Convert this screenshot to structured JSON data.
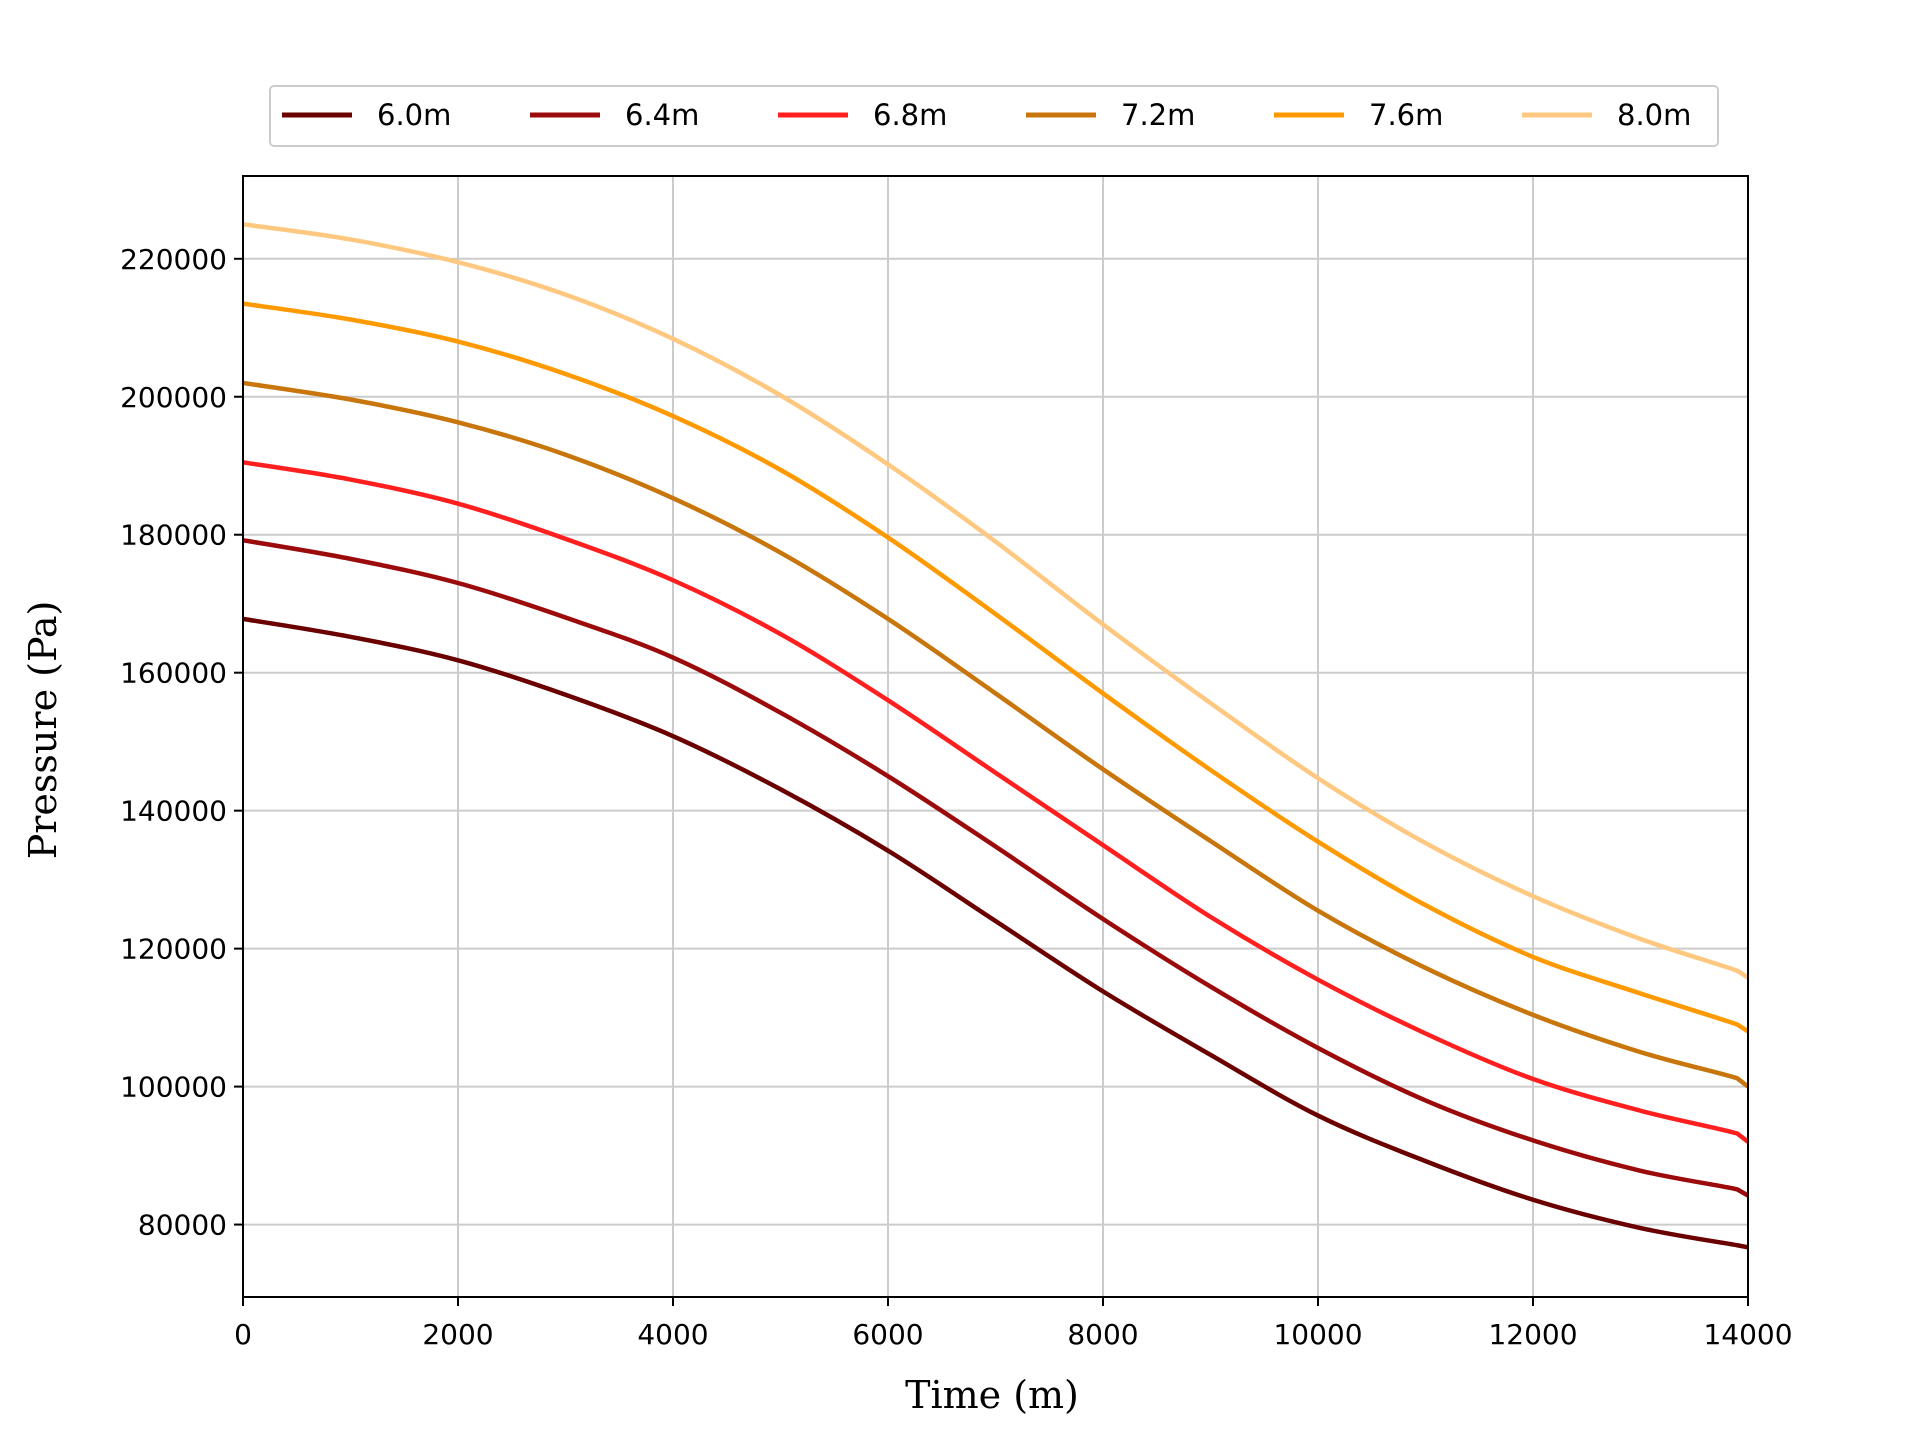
{
  "chart_data": {
    "type": "line",
    "xlabel": "Time (m)",
    "ylabel": "Pressure (Pa)",
    "xlim": [
      0,
      14000
    ],
    "ylim": [
      69500,
      232000
    ],
    "xticks": [
      0,
      2000,
      4000,
      6000,
      8000,
      10000,
      12000,
      14000
    ],
    "yticks": [
      80000,
      100000,
      120000,
      140000,
      160000,
      180000,
      200000,
      220000
    ],
    "grid": true,
    "legend_placement": "top-center",
    "x": [
      0,
      1000,
      2000,
      3000,
      4000,
      5000,
      6000,
      7000,
      8000,
      9000,
      10000,
      11000,
      12000,
      13000,
      13900,
      14000
    ],
    "series": [
      {
        "name": "6.0m",
        "color": "#6b0000",
        "values": [
          167800,
          165200,
          161800,
          156800,
          150800,
          143100,
          134200,
          124000,
          113800,
          104600,
          95800,
          89200,
          83600,
          79500,
          77000,
          76700
        ]
      },
      {
        "name": "6.4m",
        "color": "#9c0b0b",
        "values": [
          179200,
          176500,
          173000,
          168000,
          162200,
          154200,
          145000,
          134800,
          124300,
          114500,
          105600,
          98000,
          92200,
          87800,
          85100,
          84200
        ]
      },
      {
        "name": "6.8m",
        "color": "#ff1f1f",
        "values": [
          190500,
          188000,
          184500,
          179400,
          173400,
          165600,
          156000,
          145500,
          135000,
          124600,
          115500,
          107700,
          101100,
          96500,
          93200,
          92000
        ]
      },
      {
        "name": "7.2m",
        "color": "#c8760c",
        "values": [
          202000,
          199600,
          196300,
          191600,
          185300,
          177400,
          167800,
          157000,
          146000,
          135600,
          125500,
          117200,
          110400,
          105000,
          101200,
          100000
        ]
      },
      {
        "name": "7.6m",
        "color": "#ff9900",
        "values": [
          213500,
          211200,
          208000,
          203300,
          197200,
          189400,
          179600,
          168500,
          157000,
          145900,
          135500,
          126300,
          118800,
          113500,
          109000,
          108000
        ]
      },
      {
        "name": "8.0m",
        "color": "#ffc880",
        "values": [
          225000,
          222800,
          219500,
          214800,
          208400,
          200200,
          190200,
          179000,
          167000,
          155600,
          144700,
          135300,
          127600,
          121400,
          116800,
          115800
        ]
      }
    ]
  }
}
